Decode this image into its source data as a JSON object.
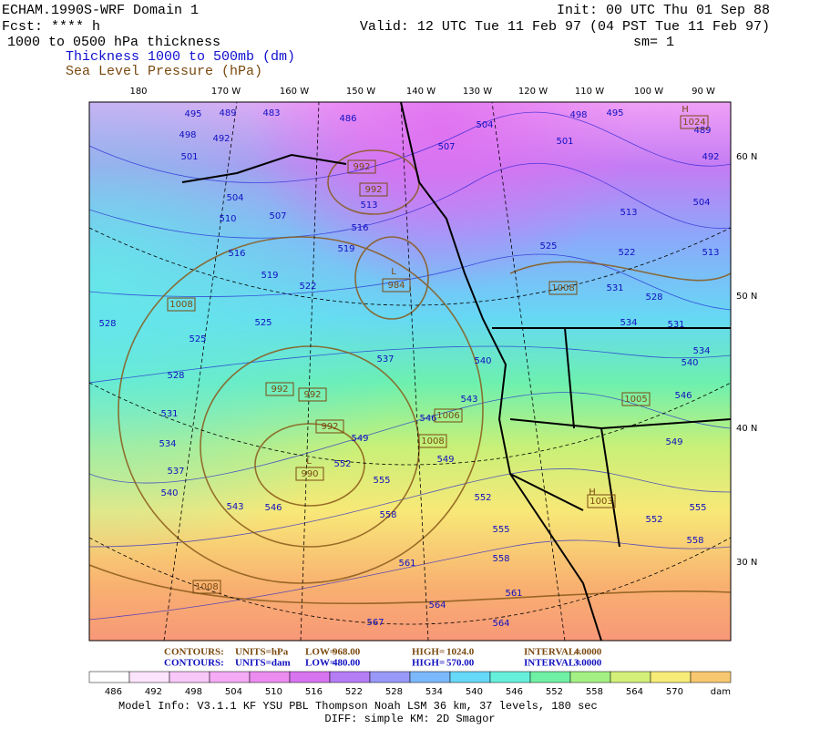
{
  "header": {
    "title": "ECHAM.1990S-WRF Domain 1",
    "init": "Init: 00 UTC Thu 01 Sep 88",
    "fcst": "Fcst: **** h",
    "valid": "Valid: 12 UTC Tue 11 Feb 97 (04 PST Tue 11 Feb 97)",
    "field": "1000 to 0500 hPa thickness",
    "smooth": "sm= 1",
    "legend_thickness": "Thickness 1000 to 500mb (dm)",
    "legend_slp": "Sea Level Pressure (hPa)"
  },
  "map": {
    "lon_labels": [
      "180",
      "170 W",
      "160 W",
      "150 W",
      "140 W",
      "130 W",
      "120 W",
      "110 W",
      "100 W",
      "90 W"
    ],
    "lat_labels": [
      "60 N",
      "50 N",
      "40 N",
      "30 N"
    ],
    "thickness_labels": [
      "495",
      "489",
      "483",
      "498",
      "492",
      "486",
      "504",
      "498",
      "495",
      "489",
      "501",
      "507",
      "501",
      "492",
      "504",
      "513",
      "513",
      "504",
      "510",
      "507",
      "516",
      "525",
      "522",
      "516",
      "519",
      "513",
      "519",
      "522",
      "531",
      "528",
      "528",
      "525",
      "534",
      "531",
      "525",
      "537",
      "534",
      "540",
      "540",
      "528",
      "543",
      "546",
      "531",
      "546",
      "534",
      "549",
      "549",
      "549",
      "537",
      "552",
      "555",
      "540",
      "543",
      "546",
      "552",
      "555",
      "558",
      "552",
      "555",
      "558",
      "558",
      "561",
      "561",
      "564",
      "564",
      "567"
    ],
    "pressure_labels": [
      "992",
      "992",
      "1008",
      "984",
      "1008",
      "992",
      "992",
      "992",
      "1006",
      "1008",
      "990",
      "1005",
      "1003",
      "1008",
      "1024"
    ],
    "centers": [
      "L",
      "L",
      "H",
      "H"
    ]
  },
  "footer": {
    "slp_contours": [
      "CONTOURS:",
      "UNITS=hPa",
      "LOW=",
      "968.00",
      "HIGH=",
      "1024.0",
      "INTERVAL=",
      "4.0000"
    ],
    "thk_contours": [
      "CONTOURS:",
      "UNITS=dam",
      "LOW=",
      "480.00",
      "HIGH=",
      "570.00",
      "INTERVAL=",
      "3.0000"
    ],
    "colorbar": {
      "labels": [
        "486",
        "492",
        "498",
        "504",
        "510",
        "516",
        "522",
        "528",
        "534",
        "540",
        "546",
        "552",
        "558",
        "564",
        "570"
      ],
      "unit": "dam",
      "colors": [
        "#ffffff",
        "#fce4fc",
        "#f8c8f8",
        "#f4aaf4",
        "#ec8cf0",
        "#d874f0",
        "#b67cf4",
        "#9898f8",
        "#7cb8fc",
        "#66d8f8",
        "#66f0dc",
        "#70f0a4",
        "#a4f084",
        "#d4f078",
        "#f8ec78",
        "#f8c870"
      ]
    },
    "model_info": "Model Info: V3.1.1    KF     YSU PBL   Thompson     Noah LSM   36 km,    37 levels,   180 sec",
    "diff": "DIFF: simple KM: 2D Smagor"
  }
}
